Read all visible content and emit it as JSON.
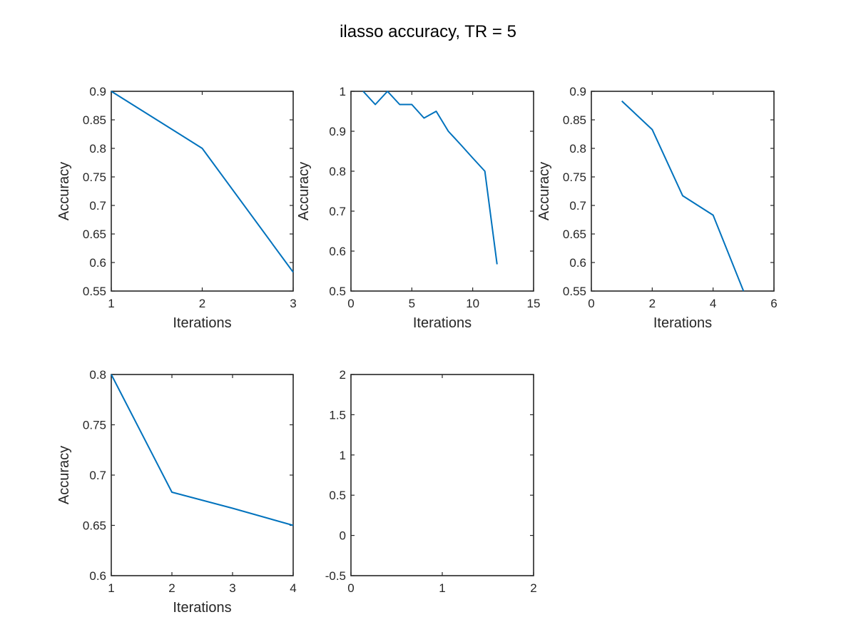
{
  "figure": {
    "title": "ilasso accuracy, TR = 5"
  },
  "colors": {
    "line": "#0072BD",
    "axes": "#262626"
  },
  "chart_data": [
    {
      "type": "line",
      "title": "",
      "xlabel": "Iterations",
      "ylabel": "Accuracy",
      "xlim": [
        1,
        3
      ],
      "ylim": [
        0.55,
        0.9
      ],
      "xticks": [
        "1",
        "2",
        "3"
      ],
      "yticks": [
        "0.55",
        "0.6",
        "0.65",
        "0.7",
        "0.75",
        "0.8",
        "0.85",
        "0.9"
      ],
      "series": [
        {
          "x": [
            1,
            2,
            3
          ],
          "y": [
            0.9,
            0.8,
            0.583
          ]
        }
      ]
    },
    {
      "type": "line",
      "title": "",
      "xlabel": "Iterations",
      "ylabel": "Accuracy",
      "xlim": [
        0,
        15
      ],
      "ylim": [
        0.5,
        1
      ],
      "xticks": [
        "0",
        "5",
        "10",
        "15"
      ],
      "yticks": [
        "0.5",
        "0.6",
        "0.7",
        "0.8",
        "0.9",
        "1"
      ],
      "series": [
        {
          "x": [
            1,
            2,
            3,
            4,
            5,
            6,
            7,
            8,
            9,
            10,
            11,
            12
          ],
          "y": [
            1.0,
            0.967,
            1.0,
            0.967,
            0.967,
            0.933,
            0.95,
            0.9,
            0.867,
            0.833,
            0.8,
            0.567
          ]
        }
      ]
    },
    {
      "type": "line",
      "title": "",
      "xlabel": "Iterations",
      "ylabel": "Accuracy",
      "xlim": [
        0,
        6
      ],
      "ylim": [
        0.55,
        0.9
      ],
      "xticks": [
        "0",
        "2",
        "4",
        "6"
      ],
      "yticks": [
        "0.55",
        "0.6",
        "0.65",
        "0.7",
        "0.75",
        "0.8",
        "0.85",
        "0.9"
      ],
      "series": [
        {
          "x": [
            1,
            2,
            3,
            4,
            5
          ],
          "y": [
            0.883,
            0.833,
            0.717,
            0.683,
            0.55
          ]
        }
      ]
    },
    {
      "type": "line",
      "title": "",
      "xlabel": "Iterations",
      "ylabel": "Accuracy",
      "xlim": [
        1,
        4
      ],
      "ylim": [
        0.6,
        0.8
      ],
      "xticks": [
        "1",
        "2",
        "3",
        "4"
      ],
      "yticks": [
        "0.6",
        "0.65",
        "0.7",
        "0.75",
        "0.8"
      ],
      "series": [
        {
          "x": [
            1,
            2,
            3,
            4
          ],
          "y": [
            0.8,
            0.683,
            0.667,
            0.65
          ]
        }
      ]
    },
    {
      "type": "line",
      "title": "",
      "xlabel": "",
      "ylabel": "",
      "xlim": [
        0,
        2
      ],
      "ylim": [
        -0.5,
        2
      ],
      "xticks": [
        "0",
        "1",
        "2"
      ],
      "yticks": [
        "-0.5",
        "0",
        "0.5",
        "1",
        "1.5",
        "2"
      ],
      "series": []
    }
  ]
}
